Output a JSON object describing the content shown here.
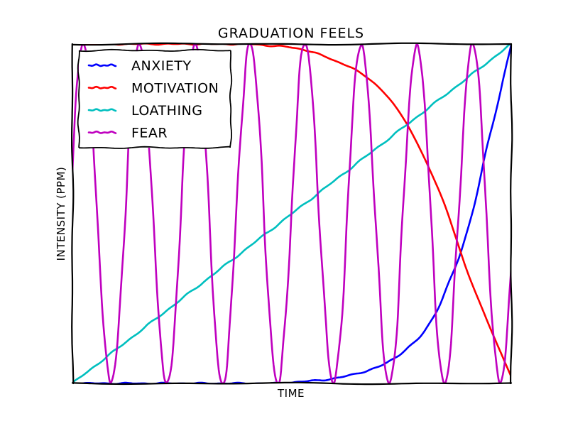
{
  "chart_data": {
    "type": "line",
    "title": "Graduation Feels",
    "xlabel": "Time",
    "ylabel": "Intensity (ppm)",
    "xlim": [
      0,
      1
    ],
    "ylim": [
      0,
      1
    ],
    "grid": false,
    "legend_position": "top-left",
    "x": [
      0,
      0.05,
      0.1,
      0.15,
      0.2,
      0.25,
      0.3,
      0.35,
      0.4,
      0.45,
      0.5,
      0.55,
      0.6,
      0.65,
      0.7,
      0.75,
      0.8,
      0.85,
      0.9,
      0.95,
      1.0
    ],
    "series": [
      {
        "name": "Anxiety",
        "color": "#0000ff",
        "values": [
          0,
          0,
          0,
          0,
          0,
          0,
          0,
          0,
          0,
          0,
          0.003,
          0.008,
          0.015,
          0.03,
          0.05,
          0.09,
          0.15,
          0.27,
          0.45,
          0.72,
          1.0
        ]
      },
      {
        "name": "Motivation",
        "color": "#ff0000",
        "values": [
          1,
          1,
          1,
          1,
          1,
          1,
          1,
          1,
          1,
          0.995,
          0.99,
          0.975,
          0.95,
          0.92,
          0.87,
          0.79,
          0.67,
          0.52,
          0.33,
          0.17,
          0.02
        ]
      },
      {
        "name": "Loathing",
        "color": "#00bfbf",
        "values": [
          0,
          0.05,
          0.1,
          0.15,
          0.2,
          0.25,
          0.3,
          0.35,
          0.4,
          0.45,
          0.5,
          0.55,
          0.6,
          0.65,
          0.7,
          0.75,
          0.8,
          0.85,
          0.9,
          0.95,
          1.0
        ]
      },
      {
        "name": "Fear",
        "color": "#bf00bf",
        "type": "oscillating",
        "peaks_x": [
          0.025,
          0.152,
          0.28,
          0.405,
          0.53,
          0.658,
          0.785,
          0.912
        ],
        "troughs_x": [
          0.088,
          0.215,
          0.342,
          0.468,
          0.595,
          0.722,
          0.848,
          0.975
        ],
        "min": 0,
        "max": 1
      }
    ]
  }
}
